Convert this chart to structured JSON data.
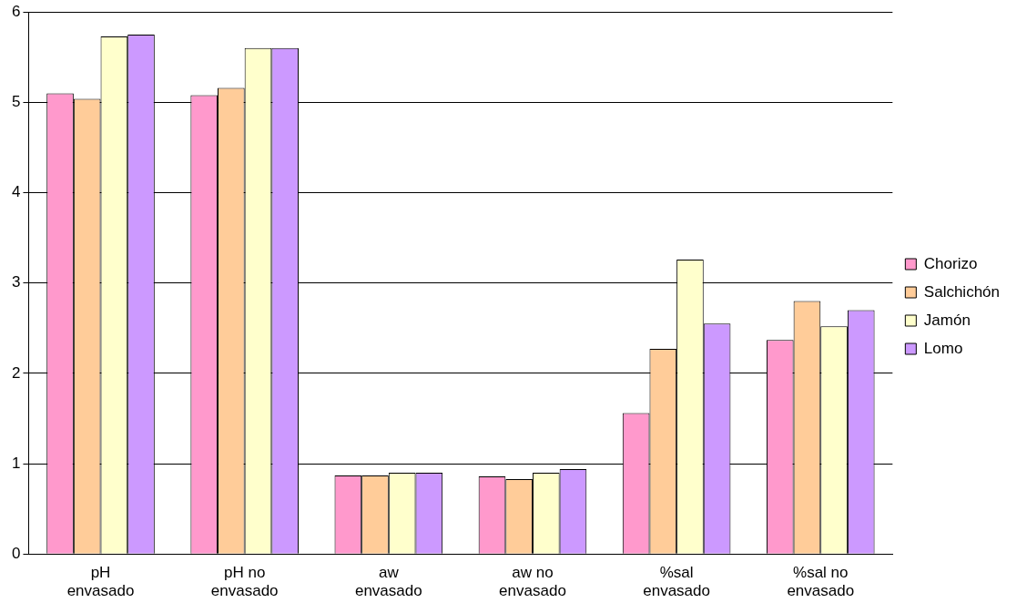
{
  "chart_data": {
    "type": "bar",
    "categories": [
      "pH envasado",
      "pH no envasado",
      "aw envasado",
      "aw no envasado",
      "%sal envasado",
      "%sal no envasado"
    ],
    "series": [
      {
        "name": "Chorizo",
        "color": "#ff99cc",
        "values": [
          5.1,
          5.08,
          0.87,
          0.86,
          1.56,
          2.37
        ]
      },
      {
        "name": "Salchichón",
        "color": "#ffcc99",
        "values": [
          5.04,
          5.16,
          0.87,
          0.83,
          2.27,
          2.8
        ]
      },
      {
        "name": "Jamón",
        "color": "#ffffcc",
        "values": [
          5.73,
          5.6,
          0.9,
          0.9,
          3.26,
          2.52
        ]
      },
      {
        "name": "Lomo",
        "color": "#cc99ff",
        "values": [
          5.75,
          5.6,
          0.9,
          0.94,
          2.55,
          2.7
        ]
      }
    ],
    "ylim": [
      0,
      6
    ],
    "yticks": [
      0,
      1,
      2,
      3,
      4,
      5,
      6
    ],
    "grid": "y",
    "legend": "right"
  }
}
